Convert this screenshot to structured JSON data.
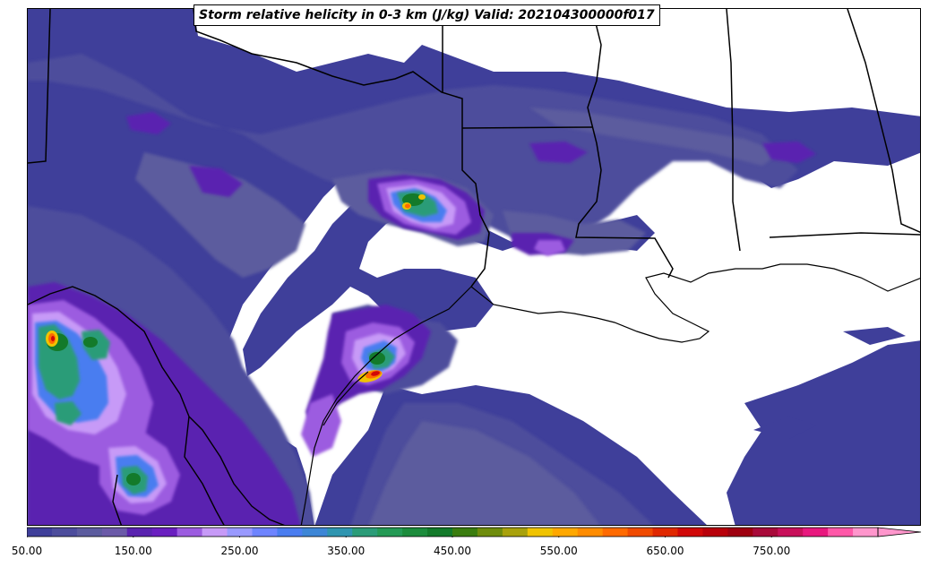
{
  "title": "Storm relative helicity in 0-3 km (J/kg) Valid: 202104300000f017",
  "colorbar": {
    "colors": [
      "#3f3f9a",
      "#4d4d9c",
      "#5c5c9e",
      "#6b5aa8",
      "#5a23b0",
      "#6a1fc0",
      "#9c5ce0",
      "#c79af7",
      "#9999ff",
      "#6e84ff",
      "#4a7df0",
      "#3d86d6",
      "#2f95b0",
      "#2b9c78",
      "#249a55",
      "#1c8c3c",
      "#137a2a",
      "#3a7d0f",
      "#6e8c0c",
      "#a8a10b",
      "#f0c300",
      "#ffa800",
      "#ff8c00",
      "#ff6a00",
      "#f04a00",
      "#e02800",
      "#d00808",
      "#b8000a",
      "#9e0010",
      "#a80a3a",
      "#c8105a",
      "#e8187e",
      "#ff58a8",
      "#ff96cc"
    ],
    "tick_labels": [
      "50.00",
      "150.00",
      "250.00",
      "350.00",
      "450.00",
      "550.00",
      "650.00",
      "750.00"
    ],
    "tick_values": [
      50,
      150,
      250,
      350,
      450,
      550,
      650,
      750
    ],
    "min": 50,
    "max": 850,
    "extend": "max"
  }
}
